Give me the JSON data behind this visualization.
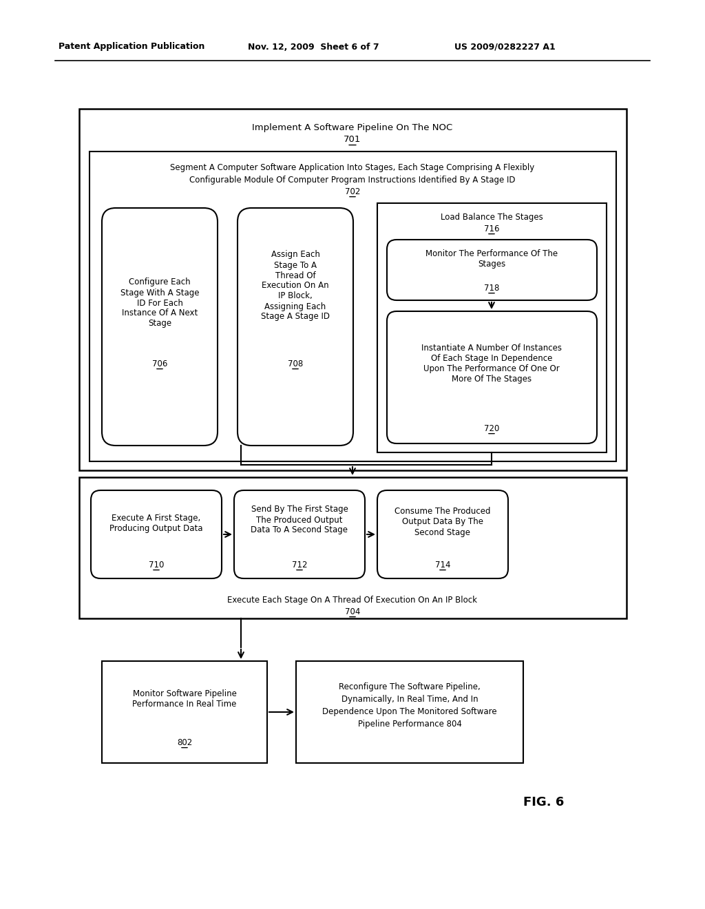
{
  "bg_color": "#ffffff",
  "header_left": "Patent Application Publication",
  "header_mid": "Nov. 12, 2009  Sheet 6 of 7",
  "header_right": "US 2009/0282227 A1",
  "fig_label": "FIG. 6"
}
